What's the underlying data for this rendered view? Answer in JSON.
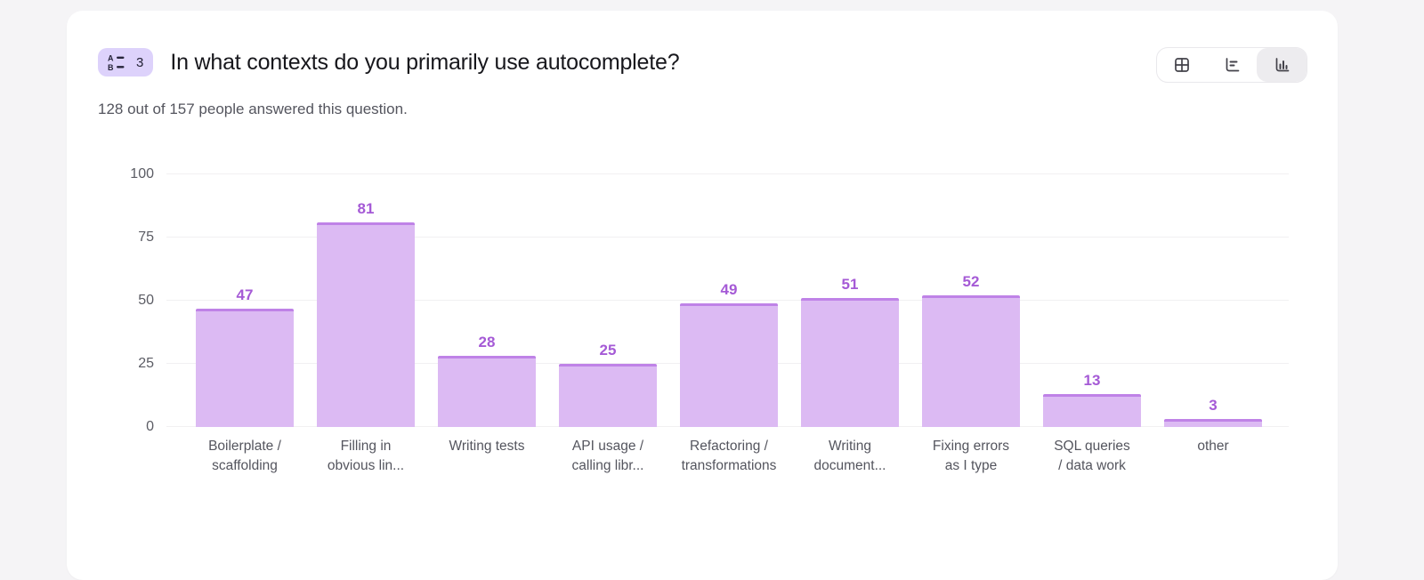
{
  "header": {
    "badge": {
      "count": "3",
      "icon": "multiple-choice-icon"
    },
    "title": "In what contexts do you primarily use autocomplete?",
    "subtitle": "128 out of 157 people answered this question.",
    "view_toggle": [
      {
        "id": "table-view",
        "icon": "table-icon",
        "selected": false
      },
      {
        "id": "horizontal-bar-view",
        "icon": "horizontal-bar-chart-icon",
        "selected": false
      },
      {
        "id": "vertical-bar-view",
        "icon": "vertical-bar-chart-icon",
        "selected": true
      }
    ]
  },
  "chart_data": {
    "type": "bar",
    "title": "In what contexts do you primarily use autocomplete?",
    "categories": [
      "Boilerplate /\nscaffolding",
      "Filling in\nobvious lin...",
      "Writing tests",
      "API usage /\ncalling libr...",
      "Refactoring /\ntransformations",
      "Writing\ndocument...",
      "Fixing errors\nas I type",
      "SQL queries\n/ data work",
      "other"
    ],
    "values": [
      47,
      81,
      28,
      25,
      49,
      51,
      52,
      13,
      3
    ],
    "xlabel": "",
    "ylabel": "",
    "ylim": [
      0,
      100
    ],
    "yticks": [
      0,
      25,
      50,
      75,
      100
    ],
    "grid": true,
    "legend": "none",
    "bar_fill_color": "#dcbaf3",
    "bar_border_color": "#bf82e7",
    "value_label_color": "#a55ad6"
  },
  "colors": {
    "page_background": "#f5f4f6",
    "card_background": "#ffffff",
    "badge_background": "#ddd2fb",
    "title_text": "#17171c",
    "muted_text": "#54555e",
    "gridline": "#f1f0f2"
  }
}
